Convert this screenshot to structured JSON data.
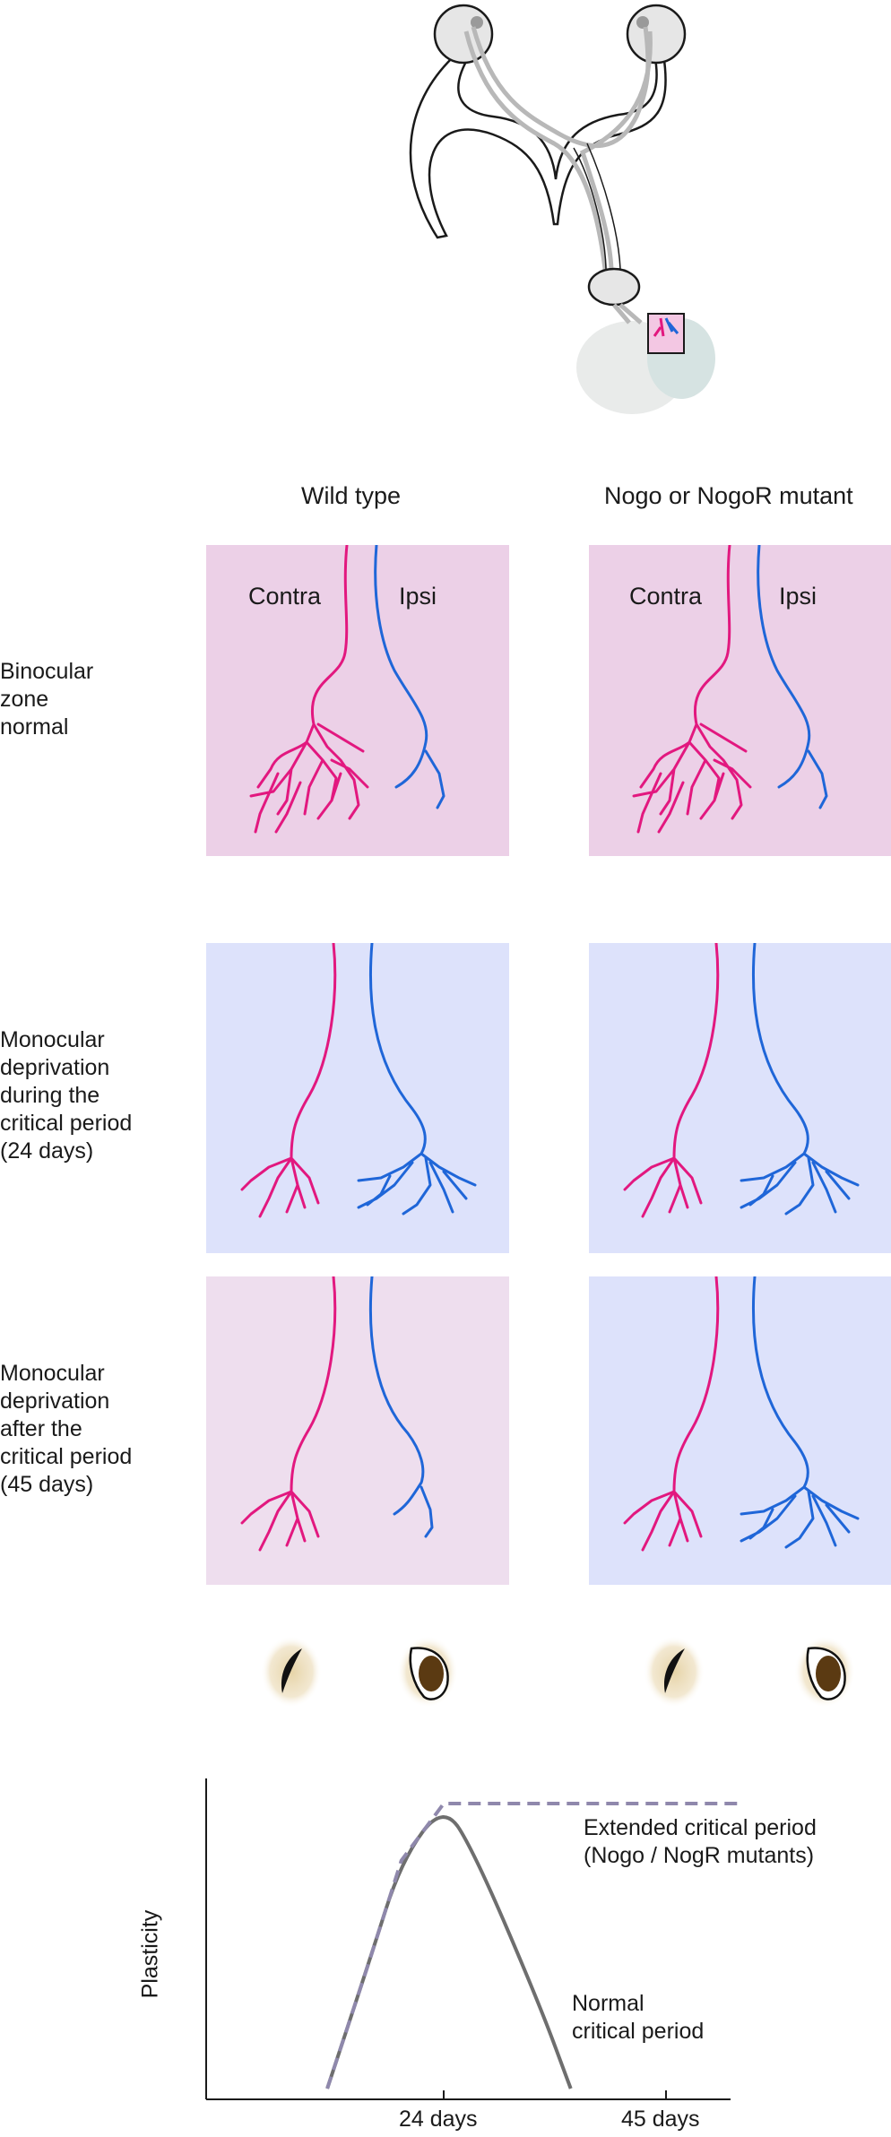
{
  "columns": {
    "wild_type": "Wild type",
    "mutant": "Nogo or NogoR mutant"
  },
  "rows": [
    {
      "id": "binocular",
      "label_lines": [
        "Binocular",
        "zone",
        "normal"
      ]
    },
    {
      "id": "md_during",
      "label_lines": [
        "Monocular",
        "deprivation",
        "during the",
        "critical period",
        "(24 days)"
      ]
    },
    {
      "id": "md_after",
      "label_lines": [
        "Monocular",
        "deprivation",
        "after the",
        "critical period",
        "(45 days)"
      ]
    }
  ],
  "panel_labels": {
    "contra": "Contra",
    "ipsi": "Ipsi"
  },
  "colors": {
    "contra": "#e2187f",
    "ipsi": "#1f66d8",
    "panel_pink": "#ecd0e7",
    "panel_blue": "#dde2fb",
    "panel_pink_light": "#eedeee",
    "normal_curve": "#6e6e6e",
    "extended_curve": "#8f88ac"
  },
  "eyes": [
    {
      "state": "closed",
      "icon": "closed-eye-icon"
    },
    {
      "state": "open",
      "icon": "open-eye-icon"
    },
    {
      "state": "closed",
      "icon": "closed-eye-icon"
    },
    {
      "state": "open",
      "icon": "open-eye-icon"
    }
  ],
  "chart_data": {
    "type": "line",
    "ylabel": "Plasticity",
    "xlabel": "",
    "x_ticks": [
      "24 days",
      "45 days"
    ],
    "series": [
      {
        "name_lines": [
          "Normal",
          "critical period"
        ],
        "style": "solid",
        "points": [
          [
            13,
            0
          ],
          [
            17,
            0.45
          ],
          [
            20,
            0.8
          ],
          [
            24,
            1.0
          ],
          [
            27,
            0.82
          ],
          [
            33,
            0.3
          ],
          [
            36,
            0.0
          ]
        ]
      },
      {
        "name_lines": [
          "Extended critical period",
          "(Nogo / NogR mutants)"
        ],
        "style": "dashed",
        "points": [
          [
            13,
            0
          ],
          [
            17,
            0.45
          ],
          [
            20,
            0.8
          ],
          [
            24,
            1.0
          ],
          [
            52,
            1.0
          ]
        ]
      }
    ]
  }
}
